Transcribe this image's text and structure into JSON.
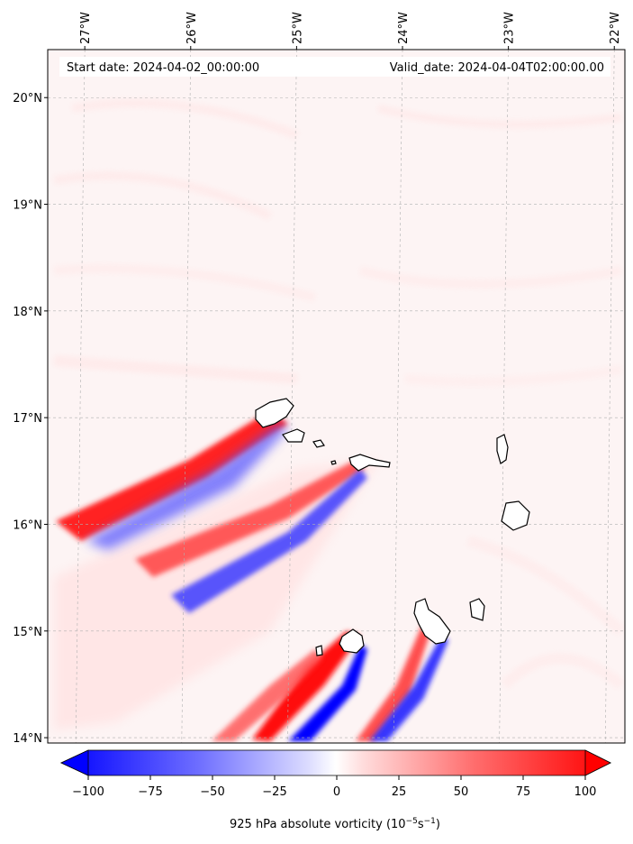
{
  "map": {
    "start_label": "Start date: 2024-04-02_00:00:00",
    "valid_label": "Valid_date: 2024-04-04T02:00:00.00",
    "lon_ticks": [
      "27°W",
      "26°W",
      "25°W",
      "24°W",
      "23°W",
      "22°W"
    ],
    "lat_ticks": [
      "20°N",
      "19°N",
      "18°N",
      "17°N",
      "16°N",
      "15°N",
      "14°N"
    ],
    "lon_range": [
      -27.35,
      -21.9
    ],
    "lat_range": [
      13.95,
      20.45
    ],
    "grid": true
  },
  "colorbar": {
    "ticks": [
      "−100",
      "−75",
      "−50",
      "−25",
      "0",
      "25",
      "50",
      "75",
      "100"
    ],
    "range": [
      -100,
      100
    ],
    "label_main": "925 hPa absolute vorticity (10",
    "label_exp1": "−5",
    "label_mid": "s",
    "label_exp2": "−1",
    "label_end": ")",
    "colors": {
      "negative": "#0000ff",
      "zero": "#ffffff",
      "positive": "#ff0000"
    }
  }
}
